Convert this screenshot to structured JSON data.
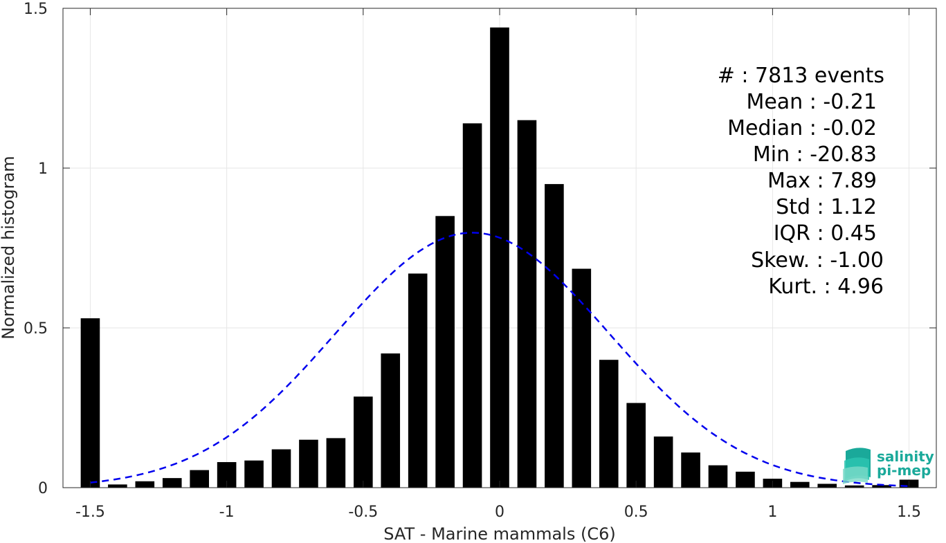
{
  "chart_data": {
    "type": "bar",
    "xlabel": "SAT - Marine mammals (C6)",
    "ylabel": "Normalized histogram",
    "xlim": [
      -1.6,
      1.6
    ],
    "ylim": [
      0,
      1.5
    ],
    "xticks": [
      "-1.5",
      "-1",
      "-0.5",
      "0",
      "0.5",
      "1",
      "1.5"
    ],
    "yticks": [
      "0",
      "0.5",
      "1",
      "1.5"
    ],
    "grid": true,
    "bar_width": 0.07,
    "x": [
      -1.5,
      -1.4,
      -1.3,
      -1.2,
      -1.1,
      -1.0,
      -0.9,
      -0.8,
      -0.7,
      -0.6,
      -0.5,
      -0.4,
      -0.3,
      -0.2,
      -0.1,
      0.0,
      0.1,
      0.2,
      0.3,
      0.4,
      0.5,
      0.6,
      0.7,
      0.8,
      0.9,
      1.0,
      1.1,
      1.2,
      1.3,
      1.4,
      1.5
    ],
    "values": [
      0.53,
      0.01,
      0.02,
      0.03,
      0.055,
      0.08,
      0.085,
      0.12,
      0.15,
      0.155,
      0.285,
      0.42,
      0.67,
      0.85,
      1.14,
      1.44,
      1.15,
      0.95,
      0.685,
      0.4,
      0.265,
      0.16,
      0.11,
      0.07,
      0.05,
      0.028,
      0.018,
      0.012,
      0.007,
      0.008,
      0.025
    ],
    "fit": {
      "type": "normal",
      "mean": -0.1,
      "std": 0.5,
      "style": "dashed",
      "color": "#0000ee"
    },
    "bar_color": "#000000",
    "stats": {
      "count": "#  : 7813 events",
      "mean": "Mean : -0.21",
      "median": "Median : -0.02",
      "min": "Min : -20.83",
      "max": "Max : 7.89",
      "std": "Std : 1.12",
      "iqr": "IQR : 0.45",
      "skew": "Skew. : -1.00",
      "kurt": "Kurt. : 4.96"
    }
  },
  "logo": {
    "line1": "salinity",
    "line2": "pi-mep",
    "color": "#1aa99a"
  }
}
